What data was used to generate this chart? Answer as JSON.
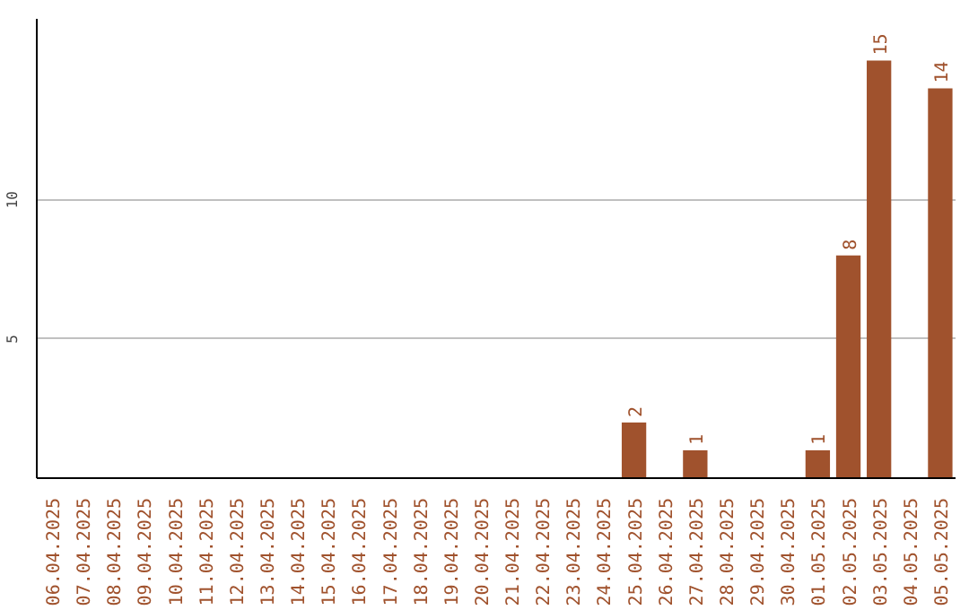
{
  "chart_data": {
    "type": "bar",
    "categories": [
      "06.04.2025",
      "07.04.2025",
      "08.04.2025",
      "09.04.2025",
      "10.04.2025",
      "11.04.2025",
      "12.04.2025",
      "13.04.2025",
      "14.04.2025",
      "15.04.2025",
      "16.04.2025",
      "17.04.2025",
      "18.04.2025",
      "19.04.2025",
      "20.04.2025",
      "21.04.2025",
      "22.04.2025",
      "23.04.2025",
      "24.04.2025",
      "25.04.2025",
      "26.04.2025",
      "27.04.2025",
      "28.04.2025",
      "29.04.2025",
      "30.04.2025",
      "01.05.2025",
      "02.05.2025",
      "03.05.2025",
      "04.05.2025",
      "05.05.2025"
    ],
    "values": [
      0,
      0,
      0,
      0,
      0,
      0,
      0,
      0,
      0,
      0,
      0,
      0,
      0,
      0,
      0,
      0,
      0,
      0,
      0,
      2,
      0,
      1,
      0,
      0,
      0,
      1,
      8,
      15,
      0,
      14
    ],
    "value_labels": [
      null,
      null,
      null,
      null,
      null,
      null,
      null,
      null,
      null,
      null,
      null,
      null,
      null,
      null,
      null,
      null,
      null,
      null,
      null,
      "2",
      null,
      "1",
      null,
      null,
      null,
      "1",
      "8",
      "15",
      null,
      "14"
    ],
    "color": "#a0522d",
    "ylim": [
      0,
      16.5
    ],
    "yticks": [
      5,
      10
    ],
    "grid": "y"
  }
}
